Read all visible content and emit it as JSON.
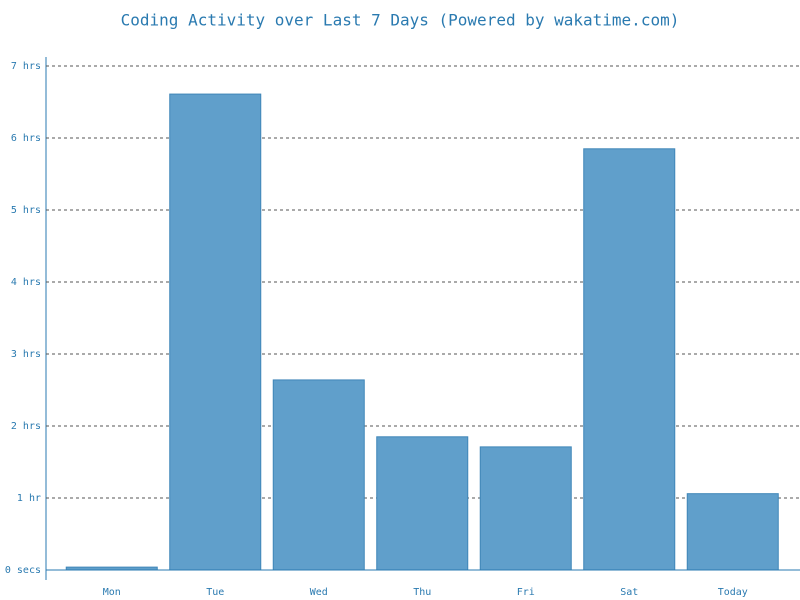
{
  "chart_data": {
    "type": "bar",
    "title": "Coding Activity over Last 7 Days (Powered by wakatime.com)",
    "categories": [
      "Mon",
      "Tue",
      "Wed",
      "Thu",
      "Fri",
      "Sat",
      "Today"
    ],
    "values": [
      0.04,
      6.61,
      2.64,
      1.85,
      1.71,
      5.85,
      1.06
    ],
    "color": "#609fcb",
    "ylim": [
      0,
      7
    ],
    "yticks": [
      {
        "value": 0,
        "label": "0 secs"
      },
      {
        "value": 1,
        "label": "1 hr"
      },
      {
        "value": 2,
        "label": "2 hrs"
      },
      {
        "value": 3,
        "label": "3 hrs"
      },
      {
        "value": 4,
        "label": "4 hrs"
      },
      {
        "value": 5,
        "label": "5 hrs"
      },
      {
        "value": 6,
        "label": "6 hrs"
      },
      {
        "value": 7,
        "label": "7 hrs"
      }
    ],
    "grid": true
  }
}
